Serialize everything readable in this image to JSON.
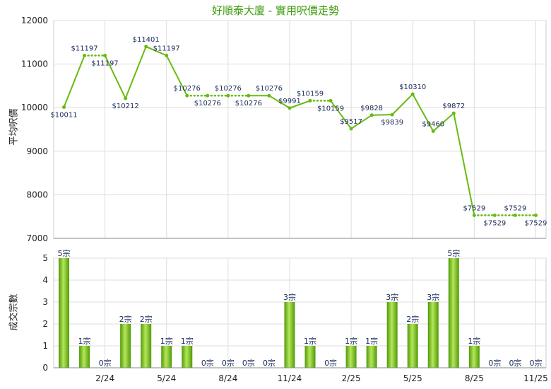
{
  "title": "好順泰大廈 - 實用呎價走勢",
  "colors": {
    "line": "#66bb11",
    "title": "#3c9a0a",
    "bar_light": "#b6e65a",
    "bar_dark": "#4f9a08",
    "grid": "#dddddd"
  },
  "chart_data": [
    {
      "type": "line",
      "title": "好順泰大廈 - 實用呎價走勢",
      "ylabel": "平均呎價",
      "ylim": [
        7000,
        12000
      ],
      "yticks": [
        "7000",
        "8000",
        "9000",
        "10000",
        "11000",
        "12000"
      ],
      "grid": true,
      "points": [
        {
          "value": 10011,
          "label": "$10011",
          "pos": "below",
          "dotted_next": false
        },
        {
          "value": 11197,
          "label": "$11197",
          "pos": "above",
          "dotted_next": true
        },
        {
          "value": 11197,
          "label": "$11197",
          "pos": "below",
          "dotted_next": false
        },
        {
          "value": 10212,
          "label": "$10212",
          "pos": "below",
          "dotted_next": false
        },
        {
          "value": 11401,
          "label": "$11401",
          "pos": "above",
          "dotted_next": false
        },
        {
          "value": 11197,
          "label": "$11197",
          "pos": "above",
          "dotted_next": false
        },
        {
          "value": 10276,
          "label": "$10276",
          "pos": "above",
          "dotted_next": true
        },
        {
          "value": 10276,
          "label": "$10276",
          "pos": "below",
          "dotted_next": true
        },
        {
          "value": 10276,
          "label": "$10276",
          "pos": "above",
          "dotted_next": true
        },
        {
          "value": 10276,
          "label": "$10276",
          "pos": "below",
          "dotted_next": false
        },
        {
          "value": 10276,
          "label": "$10276",
          "pos": "above",
          "dotted_next": false
        },
        {
          "value": 9991,
          "label": "$9991",
          "pos": "above",
          "dotted_next": false
        },
        {
          "value": 10159,
          "label": "$10159",
          "pos": "above",
          "dotted_next": true
        },
        {
          "value": 10159,
          "label": "$10159",
          "pos": "below",
          "dotted_next": false
        },
        {
          "value": 9517,
          "label": "$9517",
          "pos": "above",
          "dotted_next": false
        },
        {
          "value": 9828,
          "label": "$9828",
          "pos": "above",
          "dotted_next": false
        },
        {
          "value": 9839,
          "label": "$9839",
          "pos": "below",
          "dotted_next": false
        },
        {
          "value": 10310,
          "label": "$10310",
          "pos": "above",
          "dotted_next": false
        },
        {
          "value": 9460,
          "label": "$9460",
          "pos": "above",
          "dotted_next": false
        },
        {
          "value": 9872,
          "label": "$9872",
          "pos": "above",
          "dotted_next": false
        },
        {
          "value": 7529,
          "label": "$7529",
          "pos": "above",
          "dotted_next": true
        },
        {
          "value": 7529,
          "label": "$7529",
          "pos": "below",
          "dotted_next": true
        },
        {
          "value": 7529,
          "label": "$7529",
          "pos": "above",
          "dotted_next": true
        },
        {
          "value": 7529,
          "label": "$7529",
          "pos": "below",
          "dotted_next": false
        }
      ]
    },
    {
      "type": "bar",
      "ylabel": "成交宗數",
      "ylim": [
        0,
        5
      ],
      "yticks": [
        "0",
        "1",
        "2",
        "3",
        "4",
        "5"
      ],
      "grid": true,
      "values": [
        5,
        1,
        0,
        2,
        2,
        1,
        1,
        0,
        0,
        0,
        0,
        3,
        1,
        0,
        1,
        1,
        3,
        2,
        3,
        5,
        1,
        0,
        0,
        0
      ],
      "value_labels": [
        "5宗",
        "1宗",
        "0宗",
        "2宗",
        "2宗",
        "1宗",
        "1宗",
        "0宗",
        "0宗",
        "0宗",
        "0宗",
        "3宗",
        "1宗",
        "0宗",
        "1宗",
        "1宗",
        "3宗",
        "2宗",
        "3宗",
        "5宗",
        "1宗",
        "0宗",
        "0宗",
        "0宗"
      ],
      "x_tick_labels": [
        {
          "index": 2,
          "label": "2/24"
        },
        {
          "index": 5,
          "label": "5/24"
        },
        {
          "index": 8,
          "label": "8/24"
        },
        {
          "index": 11,
          "label": "11/24"
        },
        {
          "index": 14,
          "label": "2/25"
        },
        {
          "index": 17,
          "label": "5/25"
        },
        {
          "index": 20,
          "label": "8/25"
        },
        {
          "index": 23,
          "label": "11/25"
        }
      ]
    }
  ]
}
